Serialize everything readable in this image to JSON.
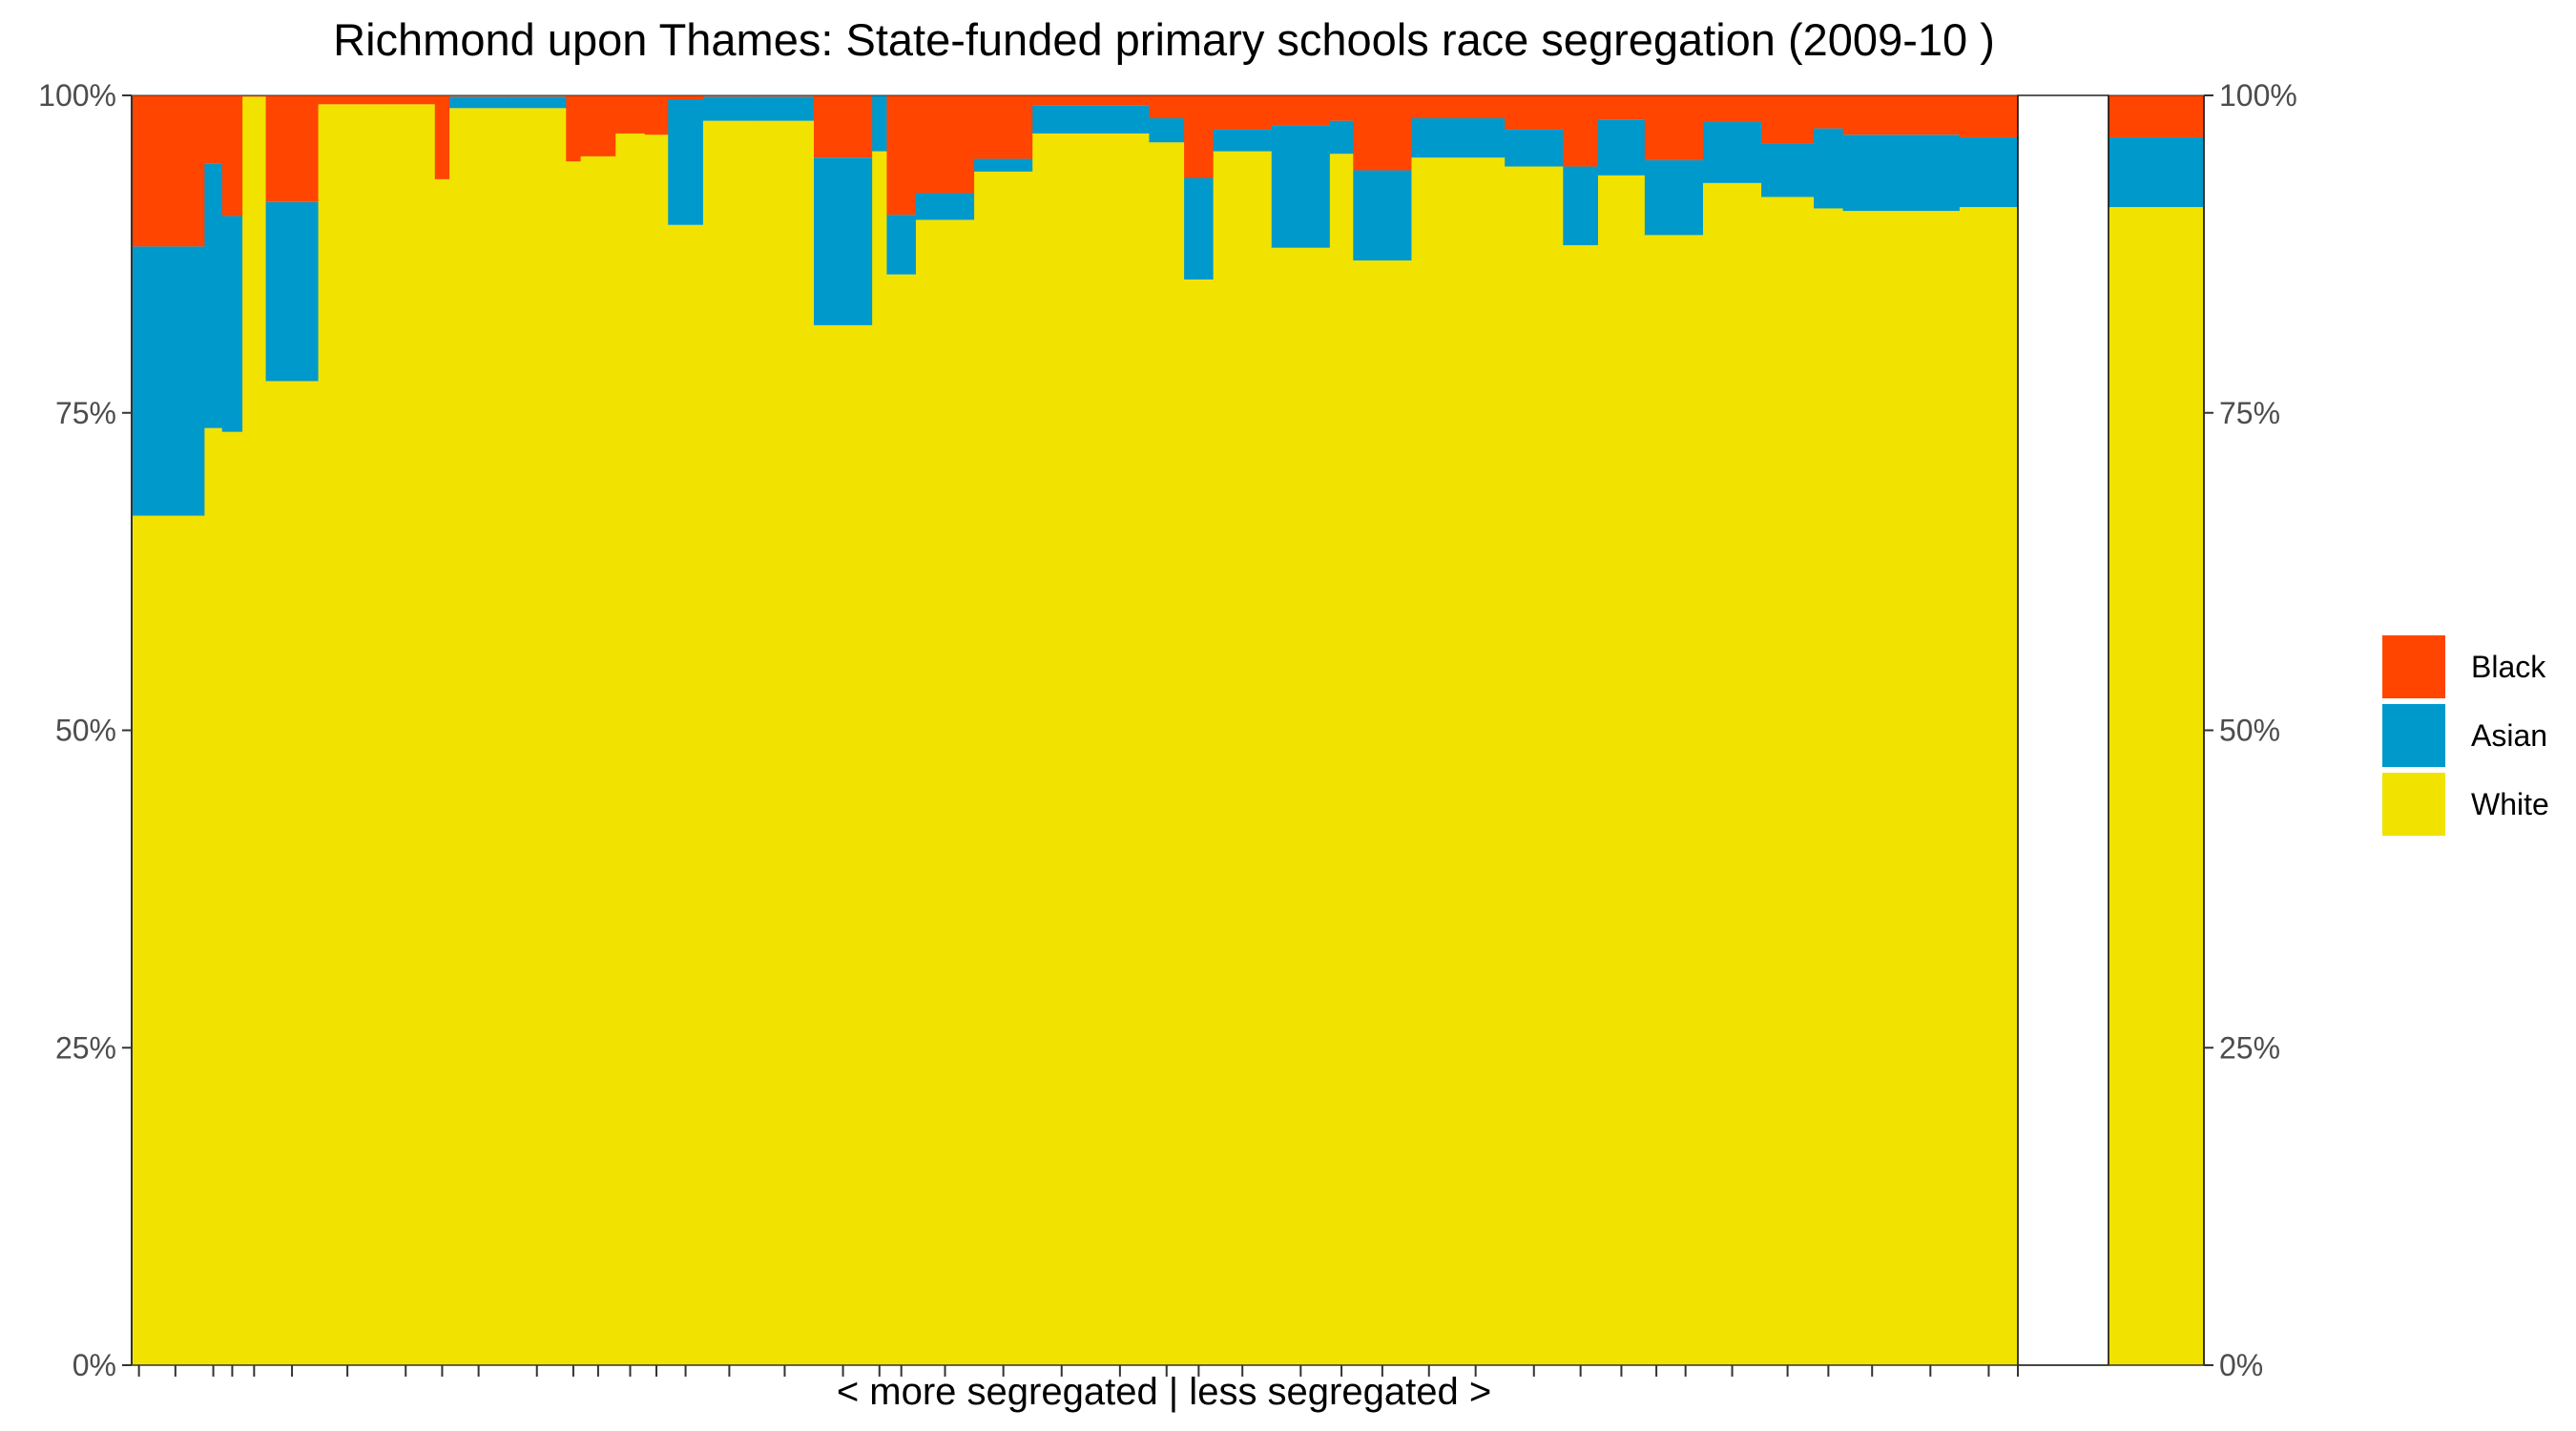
{
  "chart_data": {
    "type": "bar",
    "stacked": true,
    "normalized": true,
    "title": "Richmond upon Thames: State-funded primary schools race segregation (2009-10 )",
    "xlabel": "< more segregated | less segregated >",
    "ylabel": "",
    "ylim": [
      0,
      1
    ],
    "yticks": [
      "0%",
      "25%",
      "50%",
      "75%",
      "100%"
    ],
    "yticks_right": [
      "0%",
      "25%",
      "50%",
      "75%",
      "100%"
    ],
    "legend_position": "right",
    "grid": false,
    "colors": {
      "Black": "#ff4500",
      "Asian": "#0099cc",
      "White": "#f2e200",
      "empty_panel": "#ffffff",
      "border": "#000000"
    },
    "legend": [
      {
        "name": "Black",
        "color": "#ff4500"
      },
      {
        "name": "Asian",
        "color": "#0099cc"
      },
      {
        "name": "White",
        "color": "#f2e200"
      }
    ],
    "series_order_bottom_to_top": [
      "White",
      "Asian",
      "Black"
    ],
    "schools_relative_size": [
      5,
      20,
      6,
      7,
      8,
      18,
      20,
      20,
      5,
      20,
      20,
      5,
      12,
      10,
      8,
      12,
      18,
      20,
      20,
      5,
      10,
      20,
      20,
      20,
      20,
      12,
      10,
      20,
      20,
      8,
      20,
      12,
      20,
      20,
      12,
      16,
      8,
      12,
      20,
      18,
      10,
      20,
      20,
      20
    ],
    "series": [
      {
        "name": "White",
        "values": [
          0.669,
          0.669,
          0.738,
          0.735,
          0.999,
          0.775,
          0.993,
          0.993,
          0.934,
          0.99,
          0.99,
          0.948,
          0.952,
          0.97,
          0.969,
          0.898,
          0.98,
          0.98,
          0.819,
          0.956,
          0.859,
          0.902,
          0.94,
          0.97,
          0.97,
          0.963,
          0.855,
          0.956,
          0.88,
          0.954,
          0.87,
          0.951,
          0.951,
          0.944,
          0.882,
          0.937,
          0.89,
          0.89,
          0.931,
          0.92,
          0.911,
          0.909,
          0.909,
          0.912
        ]
      },
      {
        "name": "Asian",
        "values": [
          0.212,
          0.212,
          0.208,
          0.17,
          0.0,
          0.141,
          0.0,
          0.0,
          0.0,
          0.009,
          0.009,
          0.0,
          0.0,
          0.0,
          0.0,
          0.099,
          0.019,
          0.019,
          0.132,
          0.044,
          0.047,
          0.021,
          0.01,
          0.022,
          0.022,
          0.019,
          0.08,
          0.017,
          0.096,
          0.026,
          0.071,
          0.031,
          0.031,
          0.029,
          0.062,
          0.044,
          0.059,
          0.059,
          0.048,
          0.042,
          0.063,
          0.06,
          0.06,
          0.055
        ]
      },
      {
        "name": "Black",
        "values": [
          0.119,
          0.119,
          0.054,
          0.095,
          0.001,
          0.084,
          0.007,
          0.007,
          0.066,
          0.001,
          0.001,
          0.052,
          0.048,
          0.03,
          0.031,
          0.003,
          0.001,
          0.001,
          0.049,
          0.0,
          0.094,
          0.077,
          0.05,
          0.008,
          0.008,
          0.018,
          0.065,
          0.027,
          0.024,
          0.02,
          0.059,
          0.018,
          0.018,
          0.027,
          0.056,
          0.019,
          0.051,
          0.051,
          0.021,
          0.038,
          0.026,
          0.031,
          0.031,
          0.033
        ]
      }
    ],
    "overall_panel": {
      "White": 0.912,
      "Asian": 0.055,
      "Black": 0.033
    }
  }
}
